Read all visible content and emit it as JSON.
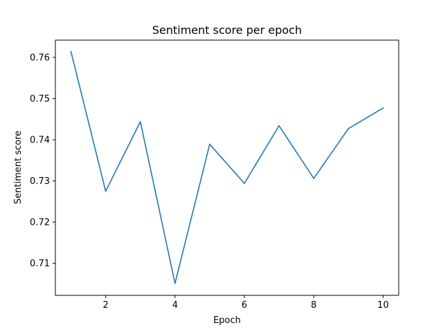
{
  "chart_data": {
    "type": "line",
    "title": "Sentiment score per epoch",
    "xlabel": "Epoch",
    "ylabel": "Sentiment score",
    "x": [
      1,
      2,
      3,
      4,
      5,
      6,
      7,
      8,
      9,
      10
    ],
    "series": [
      {
        "values": [
          0.7614,
          0.7275,
          0.7444,
          0.7051,
          0.7389,
          0.7294,
          0.7434,
          0.7306,
          0.7427,
          0.7477
        ],
        "color": "#1f77b4"
      }
    ],
    "xlim": [
      0.55,
      10.45
    ],
    "ylim": [
      0.7022,
      0.7642
    ],
    "xticks": [
      2,
      4,
      6,
      8,
      10
    ],
    "yticks": [
      0.71,
      0.72,
      0.73,
      0.74,
      0.75,
      0.76
    ],
    "xtick_labels": [
      "2",
      "4",
      "6",
      "8",
      "10"
    ],
    "ytick_labels": [
      "0.71",
      "0.72",
      "0.73",
      "0.74",
      "0.75",
      "0.76"
    ],
    "grid": false,
    "legend": "none"
  }
}
